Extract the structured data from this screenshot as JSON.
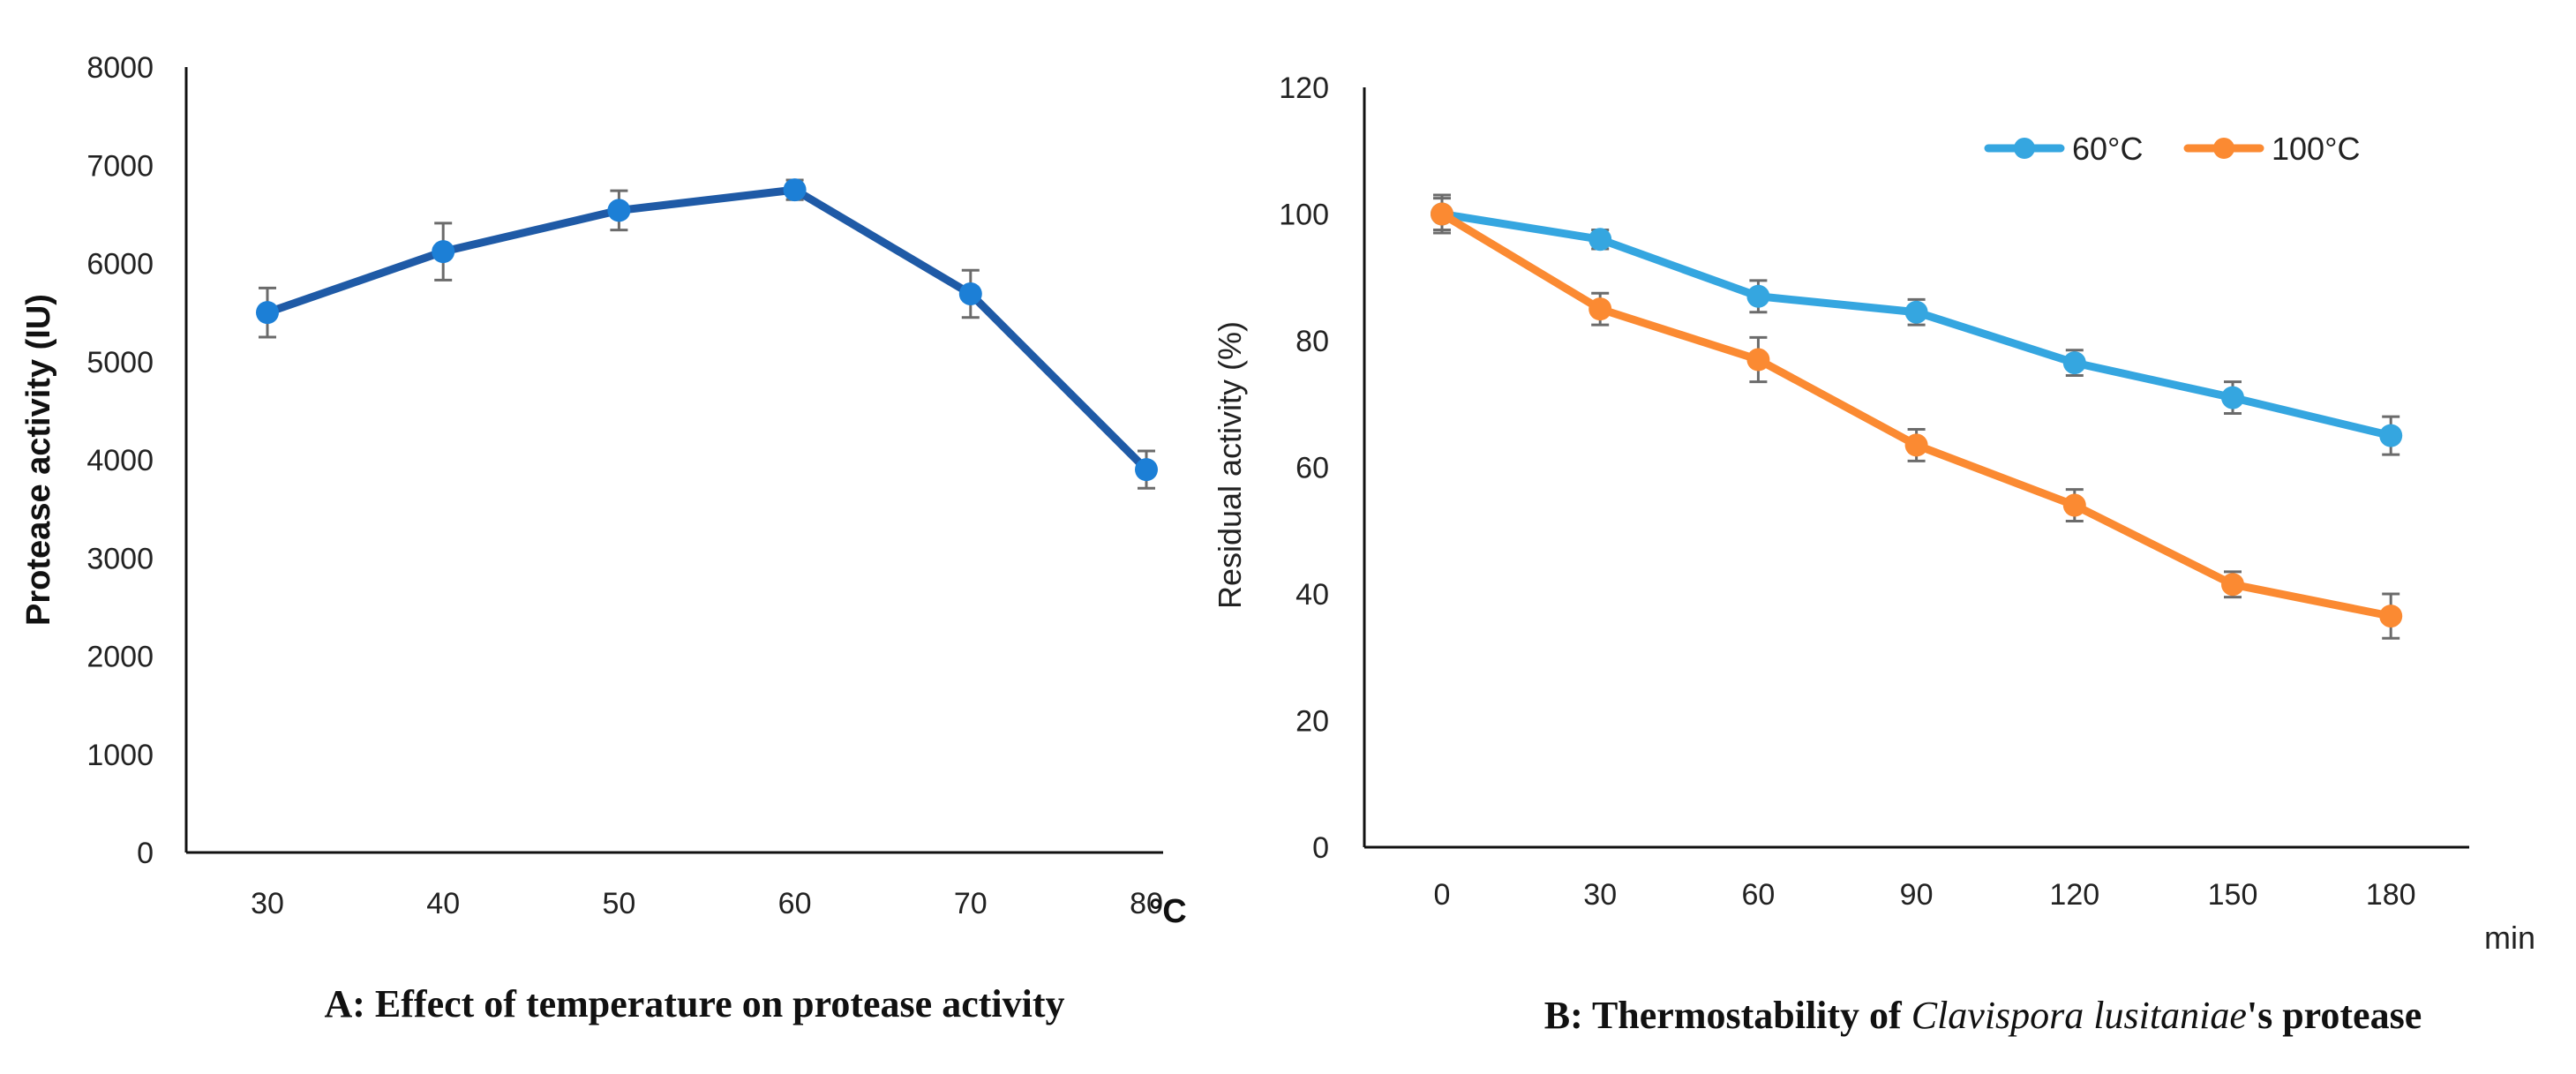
{
  "chart_data": [
    {
      "type": "line",
      "title": "A: Effect of temperature on protease activity",
      "xlabel": "°C",
      "ylabel": "Protease activity (IU)",
      "categories": [
        "30",
        "40",
        "50",
        "60",
        "70",
        "80"
      ],
      "ylim": [
        0,
        8000
      ],
      "yticks": [
        "0",
        "1000",
        "2000",
        "3000",
        "4000",
        "5000",
        "6000",
        "7000",
        "8000"
      ],
      "series": [
        {
          "name": "Protease activity",
          "color": "#1f5aa6",
          "marker_color": "#1c7fd6",
          "values": [
            5500,
            6120,
            6540,
            6750,
            5690,
            3900
          ],
          "errors": [
            250,
            290,
            200,
            100,
            240,
            190
          ]
        }
      ]
    },
    {
      "type": "line",
      "title_parts": [
        "B: Thermostability of ",
        "Clavispora lusitaniae",
        "'s protease"
      ],
      "xlabel": "min",
      "ylabel": "Residual activity (%)",
      "categories": [
        "0",
        "30",
        "60",
        "90",
        "120",
        "150",
        "180"
      ],
      "ylim": [
        0,
        120
      ],
      "yticks": [
        "0",
        "20",
        "40",
        "60",
        "80",
        "100",
        "120"
      ],
      "legend_position": "top-right",
      "series": [
        {
          "name": "60°C",
          "color": "#35a6e0",
          "values": [
            100,
            96,
            87,
            84.5,
            76.5,
            71,
            65
          ],
          "errors": [
            2.5,
            1.5,
            2.5,
            2,
            2,
            2.5,
            3
          ]
        },
        {
          "name": "100°C",
          "color": "#fb8a32",
          "values": [
            100,
            85,
            77,
            63.5,
            54,
            41.5,
            36.5
          ],
          "errors": [
            3,
            2.5,
            3.5,
            2.5,
            2.5,
            2,
            3.5
          ]
        }
      ]
    }
  ]
}
